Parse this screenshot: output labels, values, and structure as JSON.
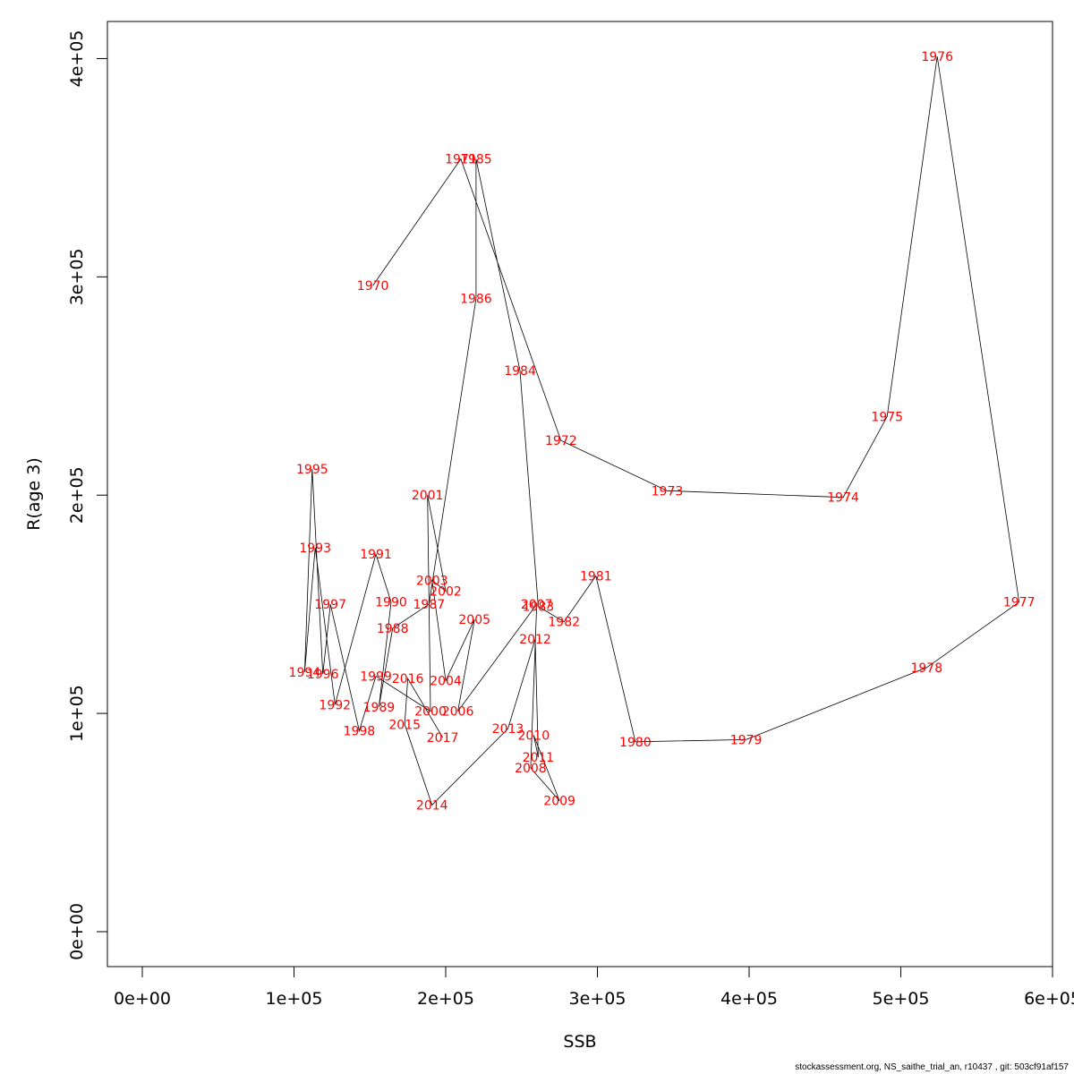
{
  "chart_data": {
    "type": "line",
    "xlabel": "SSB",
    "ylabel": "R(age 3)",
    "xlim": [
      -23000,
      600000
    ],
    "ylim": [
      -16000,
      417000
    ],
    "xticks": [
      0,
      100000,
      200000,
      300000,
      400000,
      500000,
      600000
    ],
    "xtick_labels": [
      "0e+00",
      "1e+05",
      "2e+05",
      "3e+05",
      "4e+05",
      "5e+05",
      "6e+05"
    ],
    "yticks": [
      0,
      100000,
      200000,
      300000,
      400000
    ],
    "ytick_labels": [
      "0e+00",
      "1e+05",
      "2e+05",
      "3e+05",
      "4e+05"
    ],
    "grid": false,
    "line_color": "#000000",
    "label_color": "#ff0000",
    "points": [
      {
        "year": "1970",
        "ssb": 152000,
        "r": 296000
      },
      {
        "year": "1971",
        "ssb": 210000,
        "r": 354000
      },
      {
        "year": "1972",
        "ssb": 276000,
        "r": 225000
      },
      {
        "year": "1973",
        "ssb": 346000,
        "r": 202000
      },
      {
        "year": "1974",
        "ssb": 462000,
        "r": 199000
      },
      {
        "year": "1975",
        "ssb": 491000,
        "r": 236000
      },
      {
        "year": "1976",
        "ssb": 524000,
        "r": 401000
      },
      {
        "year": "1977",
        "ssb": 578000,
        "r": 151000
      },
      {
        "year": "1978",
        "ssb": 517000,
        "r": 121000
      },
      {
        "year": "1979",
        "ssb": 398000,
        "r": 88000
      },
      {
        "year": "1980",
        "ssb": 325000,
        "r": 87000
      },
      {
        "year": "1981",
        "ssb": 299000,
        "r": 163000
      },
      {
        "year": "1982",
        "ssb": 278000,
        "r": 142000
      },
      {
        "year": "1983",
        "ssb": 261000,
        "r": 149000
      },
      {
        "year": "1984",
        "ssb": 249000,
        "r": 257000
      },
      {
        "year": "1985",
        "ssb": 220000,
        "r": 354000
      },
      {
        "year": "1986",
        "ssb": 220000,
        "r": 290000
      },
      {
        "year": "1987",
        "ssb": 189000,
        "r": 150000
      },
      {
        "year": "1988",
        "ssb": 165000,
        "r": 139000
      },
      {
        "year": "1989",
        "ssb": 156000,
        "r": 103000
      },
      {
        "year": "1990",
        "ssb": 164000,
        "r": 151000
      },
      {
        "year": "1991",
        "ssb": 154000,
        "r": 173000
      },
      {
        "year": "1992",
        "ssb": 127000,
        "r": 104000
      },
      {
        "year": "1993",
        "ssb": 114000,
        "r": 176000
      },
      {
        "year": "1994",
        "ssb": 107000,
        "r": 119000
      },
      {
        "year": "1995",
        "ssb": 112000,
        "r": 212000
      },
      {
        "year": "1996",
        "ssb": 119000,
        "r": 118000
      },
      {
        "year": "1997",
        "ssb": 124000,
        "r": 150000
      },
      {
        "year": "1998",
        "ssb": 143000,
        "r": 92000
      },
      {
        "year": "1999",
        "ssb": 154000,
        "r": 117000
      },
      {
        "year": "2000",
        "ssb": 190000,
        "r": 101000
      },
      {
        "year": "2001",
        "ssb": 188000,
        "r": 200000
      },
      {
        "year": "2002",
        "ssb": 200000,
        "r": 156000
      },
      {
        "year": "2003",
        "ssb": 191000,
        "r": 161000
      },
      {
        "year": "2004",
        "ssb": 200000,
        "r": 115000
      },
      {
        "year": "2005",
        "ssb": 219000,
        "r": 143000
      },
      {
        "year": "2006",
        "ssb": 208000,
        "r": 101000
      },
      {
        "year": "2007",
        "ssb": 260000,
        "r": 150000
      },
      {
        "year": "2008",
        "ssb": 256000,
        "r": 75000
      },
      {
        "year": "2009",
        "ssb": 275000,
        "r": 60000
      },
      {
        "year": "2010",
        "ssb": 258000,
        "r": 90000
      },
      {
        "year": "2011",
        "ssb": 261000,
        "r": 80000
      },
      {
        "year": "2012",
        "ssb": 259000,
        "r": 134000
      },
      {
        "year": "2013",
        "ssb": 241000,
        "r": 93000
      },
      {
        "year": "2014",
        "ssb": 191000,
        "r": 58000
      },
      {
        "year": "2015",
        "ssb": 173000,
        "r": 95000
      },
      {
        "year": "2016",
        "ssb": 175000,
        "r": 116000
      },
      {
        "year": "2017",
        "ssb": 198000,
        "r": 89000
      }
    ]
  },
  "footer": {
    "text": "stockassessment.org, NS_saithe_trial_an, r10437 , git: 503cf91af157"
  }
}
